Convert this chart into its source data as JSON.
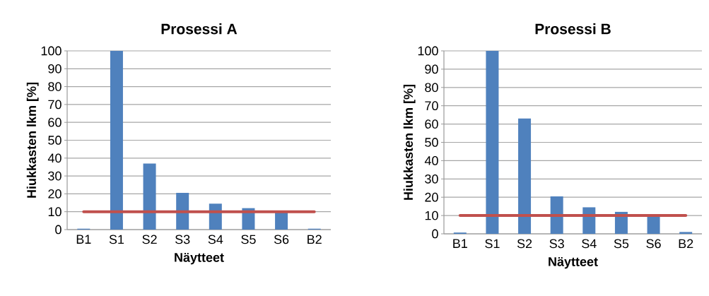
{
  "chart_data": [
    {
      "type": "bar",
      "title": "Prosessi A",
      "xlabel": "Näytteet",
      "ylabel": "Hiukkasten lkm [%]",
      "categories": [
        "B1",
        "S1",
        "S2",
        "S3",
        "S4",
        "S5",
        "S6",
        "B2"
      ],
      "values": [
        0.5,
        100,
        37,
        20.5,
        14.5,
        12,
        10,
        0.5
      ],
      "color": "#4f81bd",
      "ylim": [
        0,
        100
      ],
      "yticks": [
        0,
        10,
        20,
        30,
        40,
        50,
        60,
        70,
        80,
        90,
        100
      ],
      "grid": "y",
      "ref_lines": [
        {
          "axis": "y",
          "value": 10,
          "color": "#c0504d"
        }
      ]
    },
    {
      "type": "bar",
      "title": "Prosessi B",
      "xlabel": "Näytteet",
      "ylabel": "Hiukkasten lkm [%]",
      "categories": [
        "B1",
        "S1",
        "S2",
        "S3",
        "S4",
        "S5",
        "S6",
        "B2"
      ],
      "values": [
        0.7,
        100,
        63,
        20.5,
        14.5,
        12,
        10,
        1
      ],
      "color": "#4f81bd",
      "ylim": [
        0,
        100
      ],
      "yticks": [
        0,
        10,
        20,
        30,
        40,
        50,
        60,
        70,
        80,
        90,
        100
      ],
      "grid": "y",
      "ref_lines": [
        {
          "axis": "y",
          "value": 10,
          "color": "#c0504d"
        }
      ]
    }
  ]
}
